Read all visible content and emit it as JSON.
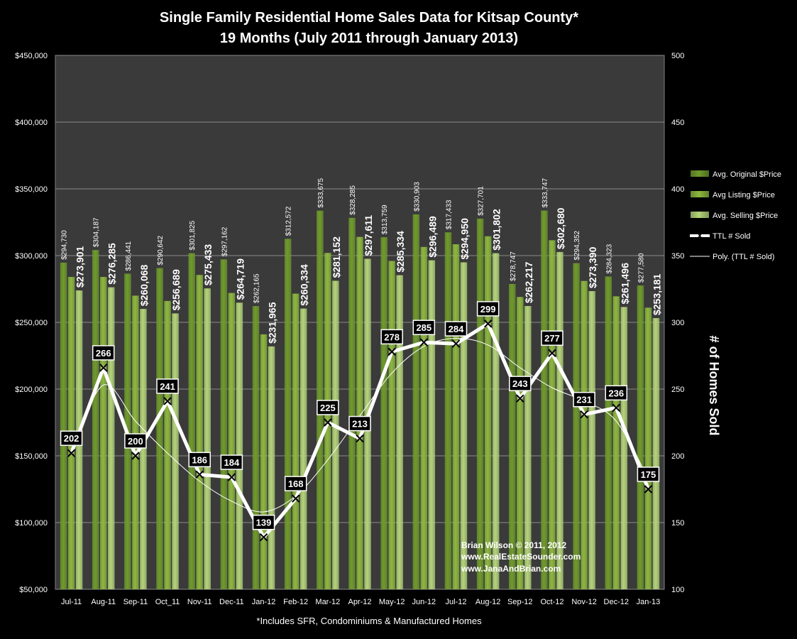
{
  "title_line1": "Single Family Residential Home Sales Data for Kitsap County*",
  "title_line2": "19 Months (July 2011 through January 2013)",
  "footnote": "*Includes SFR, Condominiums & Manufactured Homes",
  "watermark": {
    "line1": "Brian Wilson  © 2011, 2012",
    "line2": "www.RealEstateSounder.com",
    "line3": "www.JanaAndBrian.com"
  },
  "colors": {
    "background": "#000000",
    "plot_area": "#3a3a3a",
    "bar_original": "#6f9b2c",
    "bar_listing": "#8db83f",
    "bar_selling": "#b4d47a",
    "sold_line": "#ffffff",
    "label_box": "#000000"
  },
  "chart_data": {
    "type": "bar",
    "categories": [
      "Jul-11",
      "Aug-11",
      "Sep-11",
      "Oct_11",
      "Nov-11",
      "Dec-11",
      "Jan-12",
      "Feb-12",
      "Mar-12",
      "Apr-12",
      "May-12",
      "Jun-12",
      "Jul-12",
      "Aug-12",
      "Sep-12",
      "Oct-12",
      "Nov-12",
      "Dec-12",
      "Jan-13"
    ],
    "series": [
      {
        "name": "Avg. Original $Price",
        "axis": "left",
        "values": [
          294730,
          304187,
          286441,
          290642,
          301825,
          297162,
          262165,
          312572,
          333675,
          328285,
          313759,
          330903,
          317433,
          327701,
          278747,
          333747,
          294352,
          284323,
          277580
        ],
        "labels": [
          "$294,730",
          "$304,187",
          "$286,441",
          "$290,642",
          "$301,825",
          "$297,162",
          "$262,165",
          "$312,572",
          "$333,675",
          "$328,285",
          "$313,759",
          "$330,903",
          "$317,433",
          "$327,701",
          "$278,747",
          "$333,747",
          "$294,352",
          "$284,323",
          "$277,580"
        ]
      },
      {
        "name": "Avg Listing $Price",
        "axis": "left",
        "values": [
          284000,
          284000,
          270000,
          266000,
          285500,
          272000,
          241000,
          271500,
          302000,
          314000,
          296000,
          306500,
          308500,
          314500,
          269000,
          311500,
          281000,
          269500,
          261000
        ]
      },
      {
        "name": "Avg. Selling $Price",
        "axis": "left",
        "values": [
          273901,
          276285,
          260068,
          256689,
          275433,
          264719,
          231965,
          260334,
          281152,
          297611,
          285334,
          296489,
          294950,
          301802,
          262217,
          302680,
          273390,
          261496,
          253181
        ],
        "labels": [
          "$273,901",
          "$276,285",
          "$260,068",
          "$256,689",
          "$275,433",
          "$264,719",
          "$231,965",
          "$260,334",
          "$281,152",
          "$297,611",
          "$285,334",
          "$296,489",
          "$294,950",
          "$301,802",
          "$262,217",
          "$302,680",
          "$273,390",
          "$261,496",
          "$253,181"
        ]
      },
      {
        "name": "TTL # Sold",
        "axis": "right",
        "type": "line",
        "values": [
          202,
          266,
          200,
          241,
          186,
          184,
          139,
          168,
          225,
          213,
          278,
          285,
          284,
          299,
          243,
          277,
          231,
          236,
          175
        ]
      },
      {
        "name": "Poly. (TTL # Sold)",
        "axis": "right",
        "type": "trendline",
        "values": [
          205,
          253,
          226,
          202,
          181,
          166,
          158,
          170,
          197,
          230,
          262,
          282,
          288,
          283,
          266,
          251,
          241,
          226,
          183
        ]
      }
    ],
    "y_left": {
      "range": [
        50000,
        450000
      ],
      "ticks": [
        50000,
        100000,
        150000,
        200000,
        250000,
        300000,
        350000,
        400000,
        450000
      ],
      "tick_labels": [
        "$50,000",
        "$100,000",
        "$150,000",
        "$200,000",
        "$250,000",
        "$300,000",
        "$350,000",
        "$400,000",
        "$450,000"
      ]
    },
    "y_right": {
      "label": "# of Homes Sold",
      "range": [
        100,
        500
      ],
      "ticks": [
        100,
        150,
        200,
        250,
        300,
        350,
        400,
        450,
        500
      ],
      "tick_labels": [
        "100",
        "150",
        "200",
        "250",
        "300",
        "350",
        "400",
        "450",
        "500"
      ]
    },
    "grid": true,
    "legend_position": "right"
  }
}
